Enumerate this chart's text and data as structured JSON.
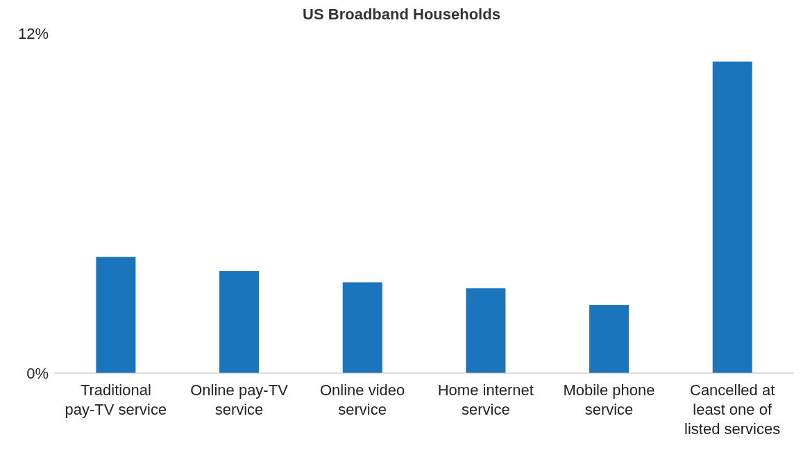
{
  "chart_data": {
    "type": "bar",
    "title": "US Broadband Households",
    "categories": [
      "Traditional pay-TV service",
      "Online pay-TV service",
      "Online video service",
      "Home internet service",
      "Mobile phone service",
      "Cancelled at least one of listed services"
    ],
    "values": [
      4.1,
      3.6,
      3.2,
      3.0,
      2.4,
      11.0
    ],
    "color": "#1b75bc",
    "ylim": [
      0,
      12
    ],
    "yticks": [
      {
        "value": 0,
        "label": "0%"
      },
      {
        "value": 12,
        "label": "12%"
      }
    ],
    "grid": false
  }
}
